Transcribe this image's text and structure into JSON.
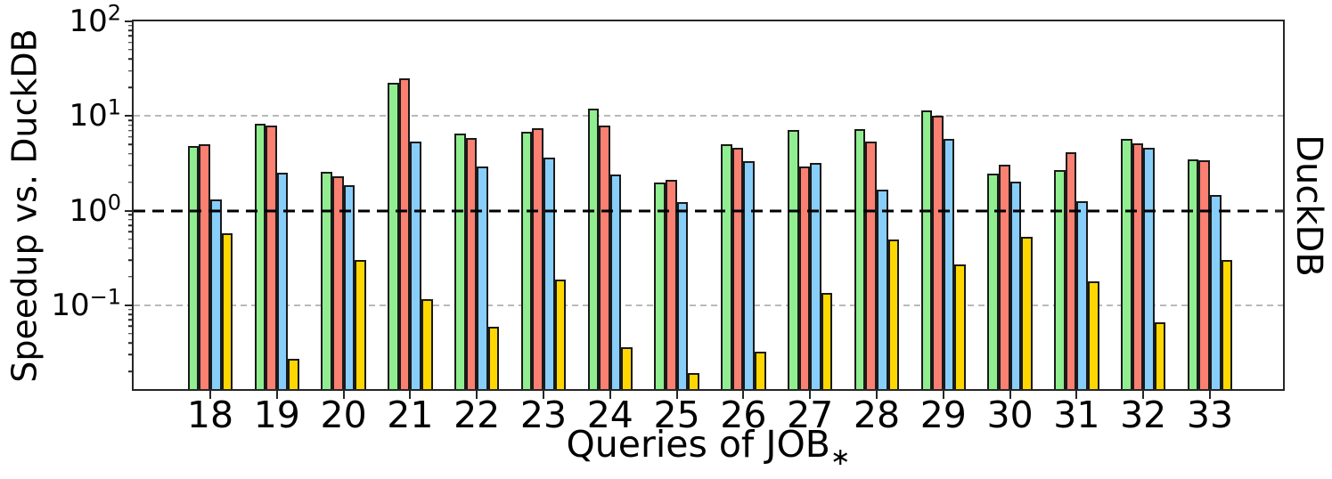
{
  "figure": {
    "background": "#ffffff"
  },
  "chart_data": {
    "type": "bar",
    "yscale": "log",
    "title": "",
    "xlabel": "Queries of JOB",
    "xlabel_sub": "∗",
    "ylabel_left": "Speedup vs. DuckDB",
    "ylabel_right": "DuckDB",
    "categories": [
      "18",
      "19",
      "20",
      "21",
      "22",
      "23",
      "24",
      "25",
      "26",
      "27",
      "28",
      "29",
      "30",
      "31",
      "32",
      "33"
    ],
    "series": [
      {
        "name": "green",
        "color": "#90EE90",
        "values": [
          4.8,
          8.2,
          2.55,
          22.5,
          6.5,
          6.75,
          11.9,
          2.0,
          5.05,
          7.1,
          7.2,
          11.4,
          2.45,
          2.7,
          5.7,
          3.5
        ]
      },
      {
        "name": "salmon",
        "color": "#FA8072",
        "values": [
          5.05,
          7.9,
          2.3,
          25.0,
          5.8,
          7.45,
          8.0,
          2.1,
          4.6,
          2.95,
          5.4,
          10.1,
          3.05,
          4.1,
          5.1,
          3.4
        ]
      },
      {
        "name": "skyblue",
        "color": "#87CEFA",
        "values": [
          1.32,
          2.5,
          1.85,
          5.4,
          2.9,
          3.65,
          2.4,
          1.22,
          3.3,
          3.2,
          1.65,
          5.7,
          2.03,
          1.27,
          4.6,
          1.47
        ]
      },
      {
        "name": "gold",
        "color": "#FFD700",
        "values": [
          0.58,
          0.027,
          0.3,
          0.115,
          0.059,
          0.185,
          0.036,
          0.019,
          0.032,
          0.135,
          0.5,
          0.27,
          0.53,
          0.178,
          0.066,
          0.3
        ]
      }
    ],
    "bar_edge_color": "#1a1a1a",
    "ylim": [
      0.013,
      100
    ],
    "yticks": [
      {
        "value": 100,
        "base": "10",
        "exp": "2"
      },
      {
        "value": 10,
        "base": "10",
        "exp": "1"
      },
      {
        "value": 1,
        "base": "10",
        "exp": "0"
      },
      {
        "value": 0.1,
        "base": "10",
        "exp": "−1"
      }
    ],
    "gridlines": {
      "values": [
        10,
        0.1
      ],
      "color": "#b9b9b9",
      "style": "dashed"
    },
    "baseline": {
      "value": 1,
      "color": "#000000",
      "style": "dashed"
    },
    "grid": "on",
    "legend": "none"
  }
}
